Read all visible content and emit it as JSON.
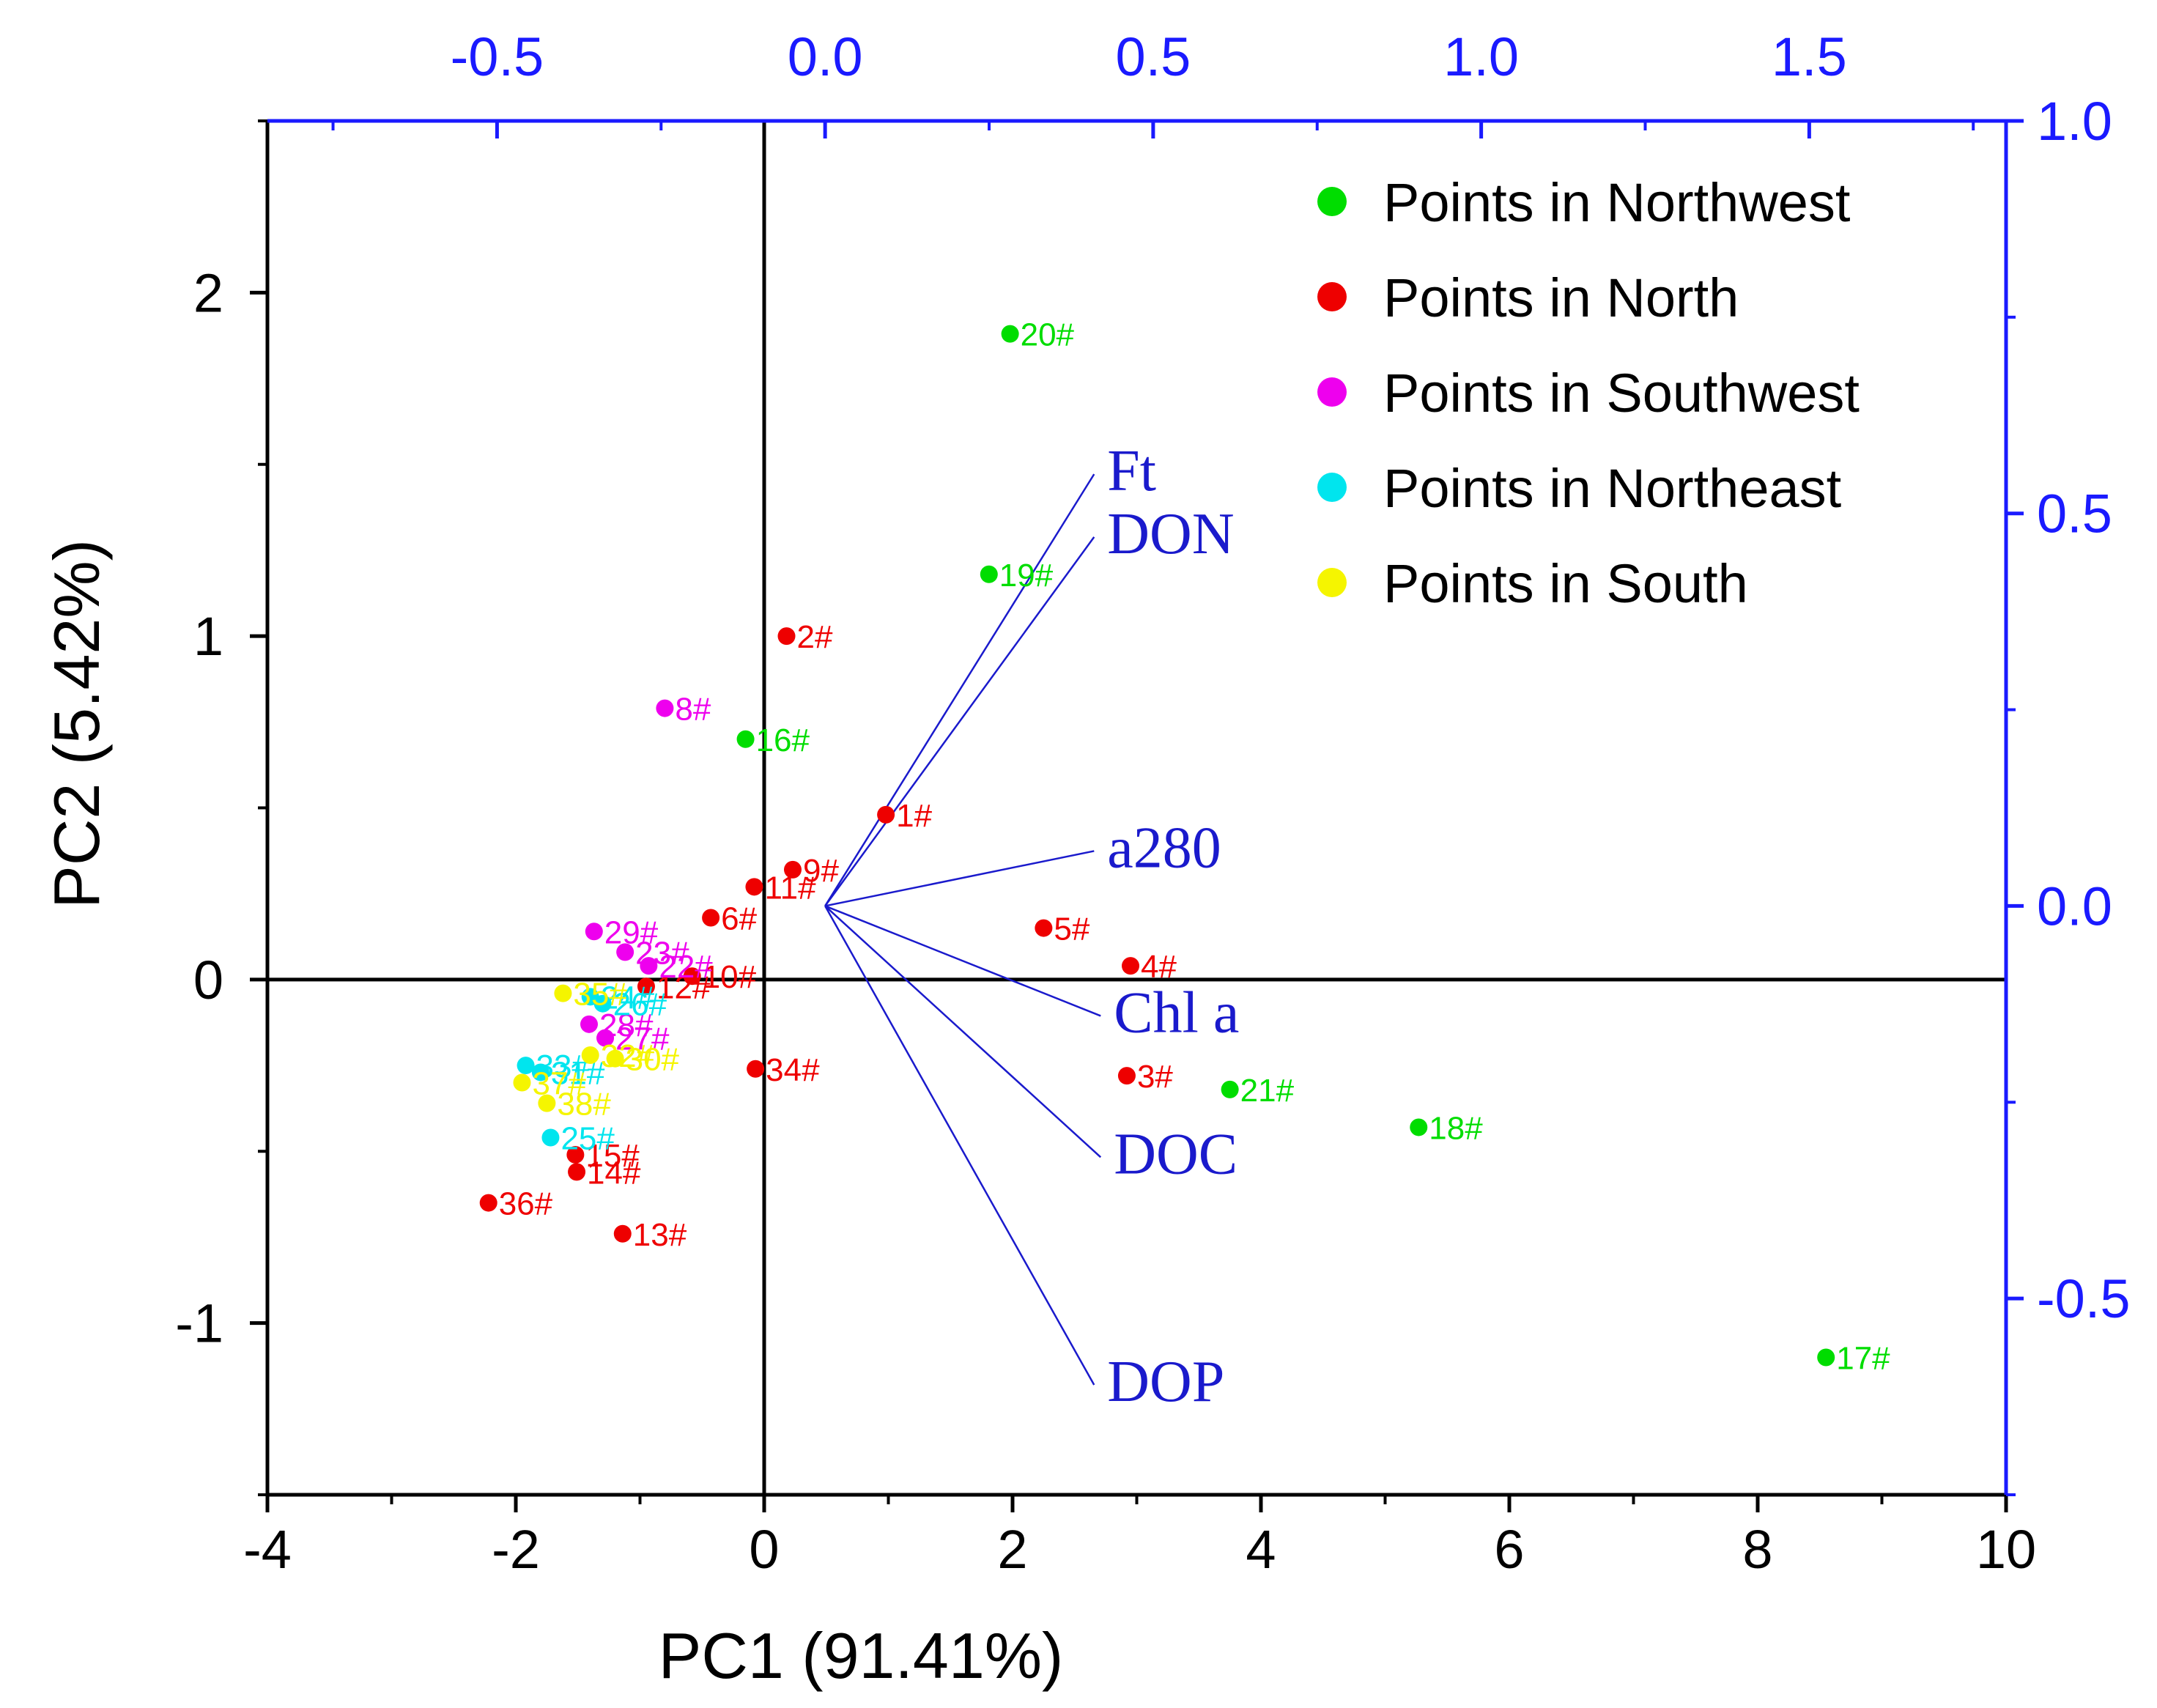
{
  "chart_data": {
    "type": "scatter",
    "subtype": "pca-biplot",
    "xlabel": "PC1 (91.41%)",
    "ylabel": "PC2 (5.42%)",
    "xlim": [
      -4,
      10
    ],
    "ylim": [
      -1.5,
      2.5
    ],
    "x_ticks": [
      "-4",
      "-2",
      "0",
      "2",
      "4",
      "6",
      "8",
      "10"
    ],
    "y_ticks": [
      "-1",
      "0",
      "1",
      "2"
    ],
    "top_xlim": [
      -0.85,
      1.8
    ],
    "top_x_ticks": [
      "-0.5",
      "0.0",
      "0.5",
      "1.0",
      "1.5"
    ],
    "right_ylim": [
      -0.75,
      1.0
    ],
    "right_y_ticks": [
      "-0.5",
      "0.0",
      "0.5",
      "1.0"
    ],
    "legend_position": "top-right",
    "series": [
      {
        "name": "Points in Northwest",
        "color": "#00dd00",
        "points": [
          {
            "label": "20#",
            "x": 1.98,
            "y": 1.88
          },
          {
            "label": "19#",
            "x": 1.81,
            "y": 1.18
          },
          {
            "label": "16#",
            "x": -0.15,
            "y": 0.7
          },
          {
            "label": "21#",
            "x": 3.75,
            "y": -0.32
          },
          {
            "label": "18#",
            "x": 5.27,
            "y": -0.43
          },
          {
            "label": "17#",
            "x": 8.55,
            "y": -1.1
          }
        ]
      },
      {
        "name": "Points in North",
        "color": "#ee0000",
        "points": [
          {
            "label": "2#",
            "x": 0.18,
            "y": 1.0
          },
          {
            "label": "1#",
            "x": 0.98,
            "y": 0.48
          },
          {
            "label": "9#",
            "x": 0.23,
            "y": 0.32
          },
          {
            "label": "11#",
            "x": -0.08,
            "y": 0.27
          },
          {
            "label": "6#",
            "x": -0.43,
            "y": 0.18
          },
          {
            "label": "5#",
            "x": 2.25,
            "y": 0.15
          },
          {
            "label": "4#",
            "x": 2.95,
            "y": 0.04
          },
          {
            "label": "10#",
            "x": -0.58,
            "y": 0.01
          },
          {
            "label": "12#",
            "x": -0.95,
            "y": -0.02
          },
          {
            "label": "34#",
            "x": -0.07,
            "y": -0.26
          },
          {
            "label": "3#",
            "x": 2.92,
            "y": -0.28
          },
          {
            "label": "15#",
            "x": -1.52,
            "y": -0.51
          },
          {
            "label": "14#",
            "x": -1.51,
            "y": -0.56
          },
          {
            "label": "36#",
            "x": -2.22,
            "y": -0.65
          },
          {
            "label": "13#",
            "x": -1.14,
            "y": -0.74
          }
        ]
      },
      {
        "name": "Points in Southwest",
        "color": "#ee00ee",
        "points": [
          {
            "label": "8#",
            "x": -0.8,
            "y": 0.79
          },
          {
            "label": "29#",
            "x": -1.37,
            "y": 0.14
          },
          {
            "label": "23#",
            "x": -1.12,
            "y": 0.08
          },
          {
            "label": "22#",
            "x": -0.93,
            "y": 0.04
          },
          {
            "label": "28#",
            "x": -1.41,
            "y": -0.13
          },
          {
            "label": "27#",
            "x": -1.28,
            "y": -0.17
          }
        ]
      },
      {
        "name": "Points in Northeast",
        "color": "#00e5ee",
        "points": [
          {
            "label": "24#",
            "x": -1.4,
            "y": -0.05
          },
          {
            "label": "26#",
            "x": -1.3,
            "y": -0.07
          },
          {
            "label": "33#",
            "x": -1.92,
            "y": -0.25
          },
          {
            "label": "31#",
            "x": -1.8,
            "y": -0.27
          },
          {
            "label": "25#",
            "x": -1.72,
            "y": -0.46
          }
        ]
      },
      {
        "name": "Points in South",
        "color": "#f5f500",
        "points": [
          {
            "label": "35#",
            "x": -1.62,
            "y": -0.04
          },
          {
            "label": "30#",
            "x": -1.2,
            "y": -0.23
          },
          {
            "label": "32#",
            "x": -1.4,
            "y": -0.22
          },
          {
            "label": "37#",
            "x": -1.95,
            "y": -0.3
          },
          {
            "label": "38#",
            "x": -1.75,
            "y": -0.36
          }
        ]
      }
    ],
    "loadings": [
      {
        "label": "Ft",
        "x": 0.41,
        "y": 0.55
      },
      {
        "label": "DON",
        "x": 0.41,
        "y": 0.47
      },
      {
        "label": "a280",
        "x": 0.41,
        "y": 0.07
      },
      {
        "label": "Chl a",
        "x": 0.42,
        "y": -0.14
      },
      {
        "label": "DOC",
        "x": 0.42,
        "y": -0.32
      },
      {
        "label": "DOP",
        "x": 0.41,
        "y": -0.61
      }
    ]
  },
  "colors": {
    "axis_secondary": "#1a1aff",
    "loading_vector": "#1a1acc"
  }
}
